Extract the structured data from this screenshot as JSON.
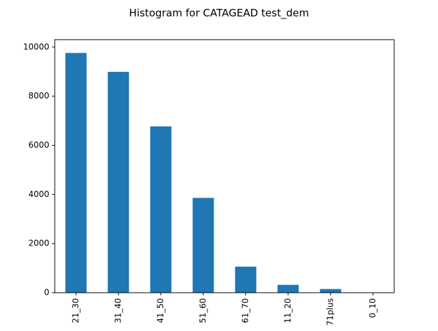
{
  "chart_data": {
    "type": "bar",
    "title": "Histogram for CATAGEAD test_dem",
    "xlabel": "",
    "ylabel": "",
    "categories": [
      "21_30",
      "31_40",
      "41_50",
      "51_60",
      "61_70",
      "11_20",
      "71plus",
      "0_10"
    ],
    "values": [
      9760,
      8990,
      6770,
      3860,
      1060,
      320,
      150,
      5
    ],
    "ylim": [
      0,
      10300
    ],
    "yticks": [
      0,
      2000,
      4000,
      6000,
      8000,
      10000
    ],
    "grid": false,
    "bar_color": "#1f77b4"
  }
}
